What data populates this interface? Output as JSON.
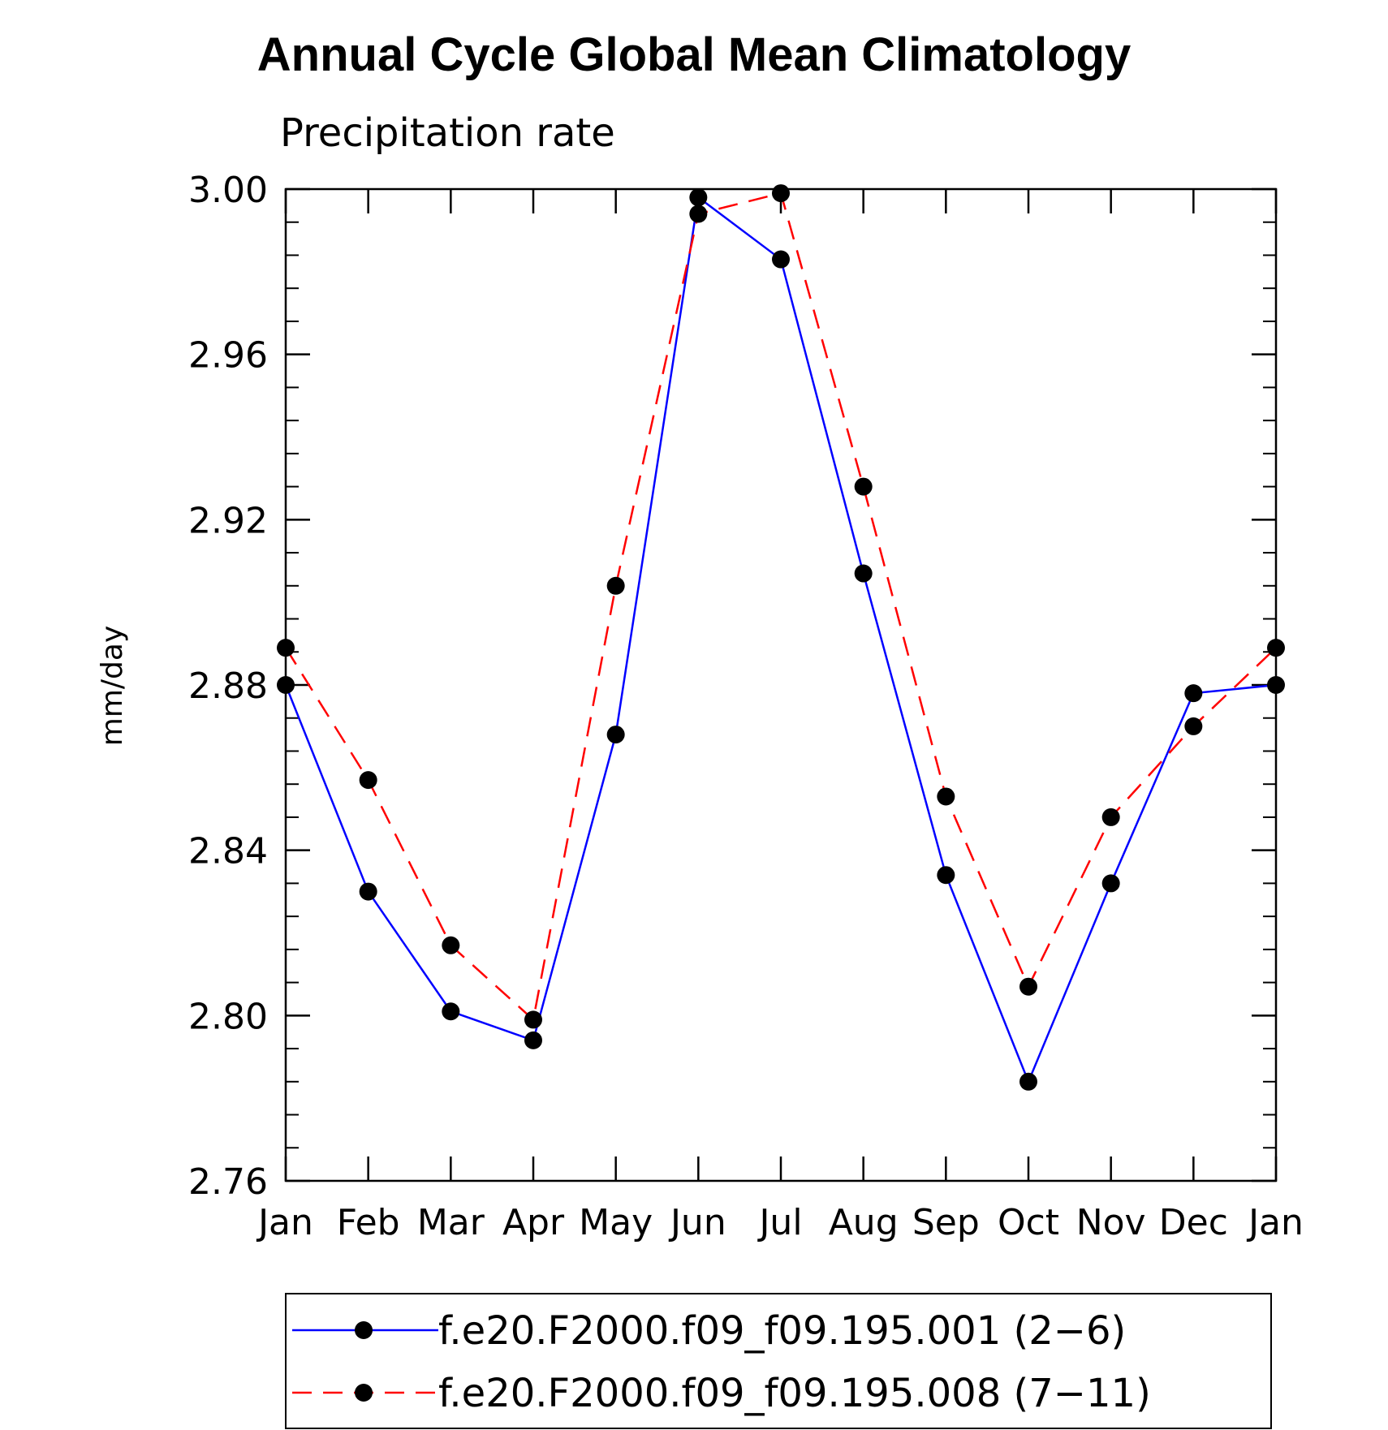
{
  "chart_data": {
    "type": "line",
    "title": "Annual Cycle Global Mean Climatology",
    "subtitle": "Precipitation rate",
    "ylabel": "mm/day",
    "xlabel": "",
    "categories": [
      "Jan",
      "Feb",
      "Mar",
      "Apr",
      "May",
      "Jun",
      "Jul",
      "Aug",
      "Sep",
      "Oct",
      "Nov",
      "Dec",
      "Jan"
    ],
    "ylim": [
      2.76,
      3.0
    ],
    "yticks": [
      "2.76",
      "2.80",
      "2.84",
      "2.88",
      "2.92",
      "2.96",
      "3.00"
    ],
    "series": [
      {
        "name": "f.e20.F2000.f09_f09.195.001 (2−6)",
        "color": "#0000ff",
        "dash": "solid",
        "marker": "filled-circle",
        "values": [
          2.88,
          2.83,
          2.801,
          2.794,
          2.868,
          2.998,
          2.983,
          2.907,
          2.834,
          2.784,
          2.832,
          2.878,
          2.88
        ]
      },
      {
        "name": "f.e20.F2000.f09_f09.195.008 (7−11)",
        "color": "#ff0000",
        "dash": "dashed",
        "marker": "filled-circle",
        "values": [
          2.889,
          2.857,
          2.817,
          2.799,
          2.904,
          2.994,
          2.999,
          2.928,
          2.853,
          2.807,
          2.848,
          2.87,
          2.889
        ]
      }
    ],
    "legend_position": "bottom",
    "grid": false
  }
}
